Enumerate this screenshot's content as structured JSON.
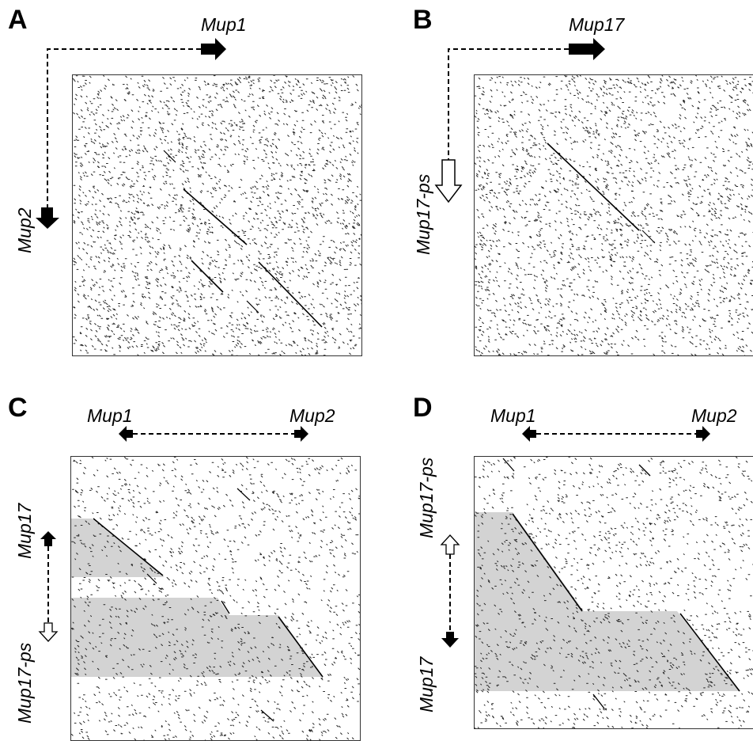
{
  "panels": {
    "A": {
      "letter": "A",
      "top_gene": "Mup1",
      "left_gene": "Mup2"
    },
    "B": {
      "letter": "B",
      "top_gene": "Mup17",
      "left_gene": "Mup17-ps"
    },
    "C": {
      "letter": "C",
      "top_left_gene": "Mup1",
      "top_right_gene": "Mup2",
      "left_upper_gene": "Mup17",
      "left_lower_gene": "Mup17-ps"
    },
    "D": {
      "letter": "D",
      "top_left_gene": "Mup1",
      "top_right_gene": "Mup2",
      "left_upper_gene": "Mup17-ps",
      "left_lower_gene": "Mup17"
    }
  },
  "colors": {
    "dots": "#222222",
    "shade": "#d3d3d3",
    "frame": "#333333",
    "filled_arrow": "#000000",
    "open_arrow": "#ffffff"
  }
}
